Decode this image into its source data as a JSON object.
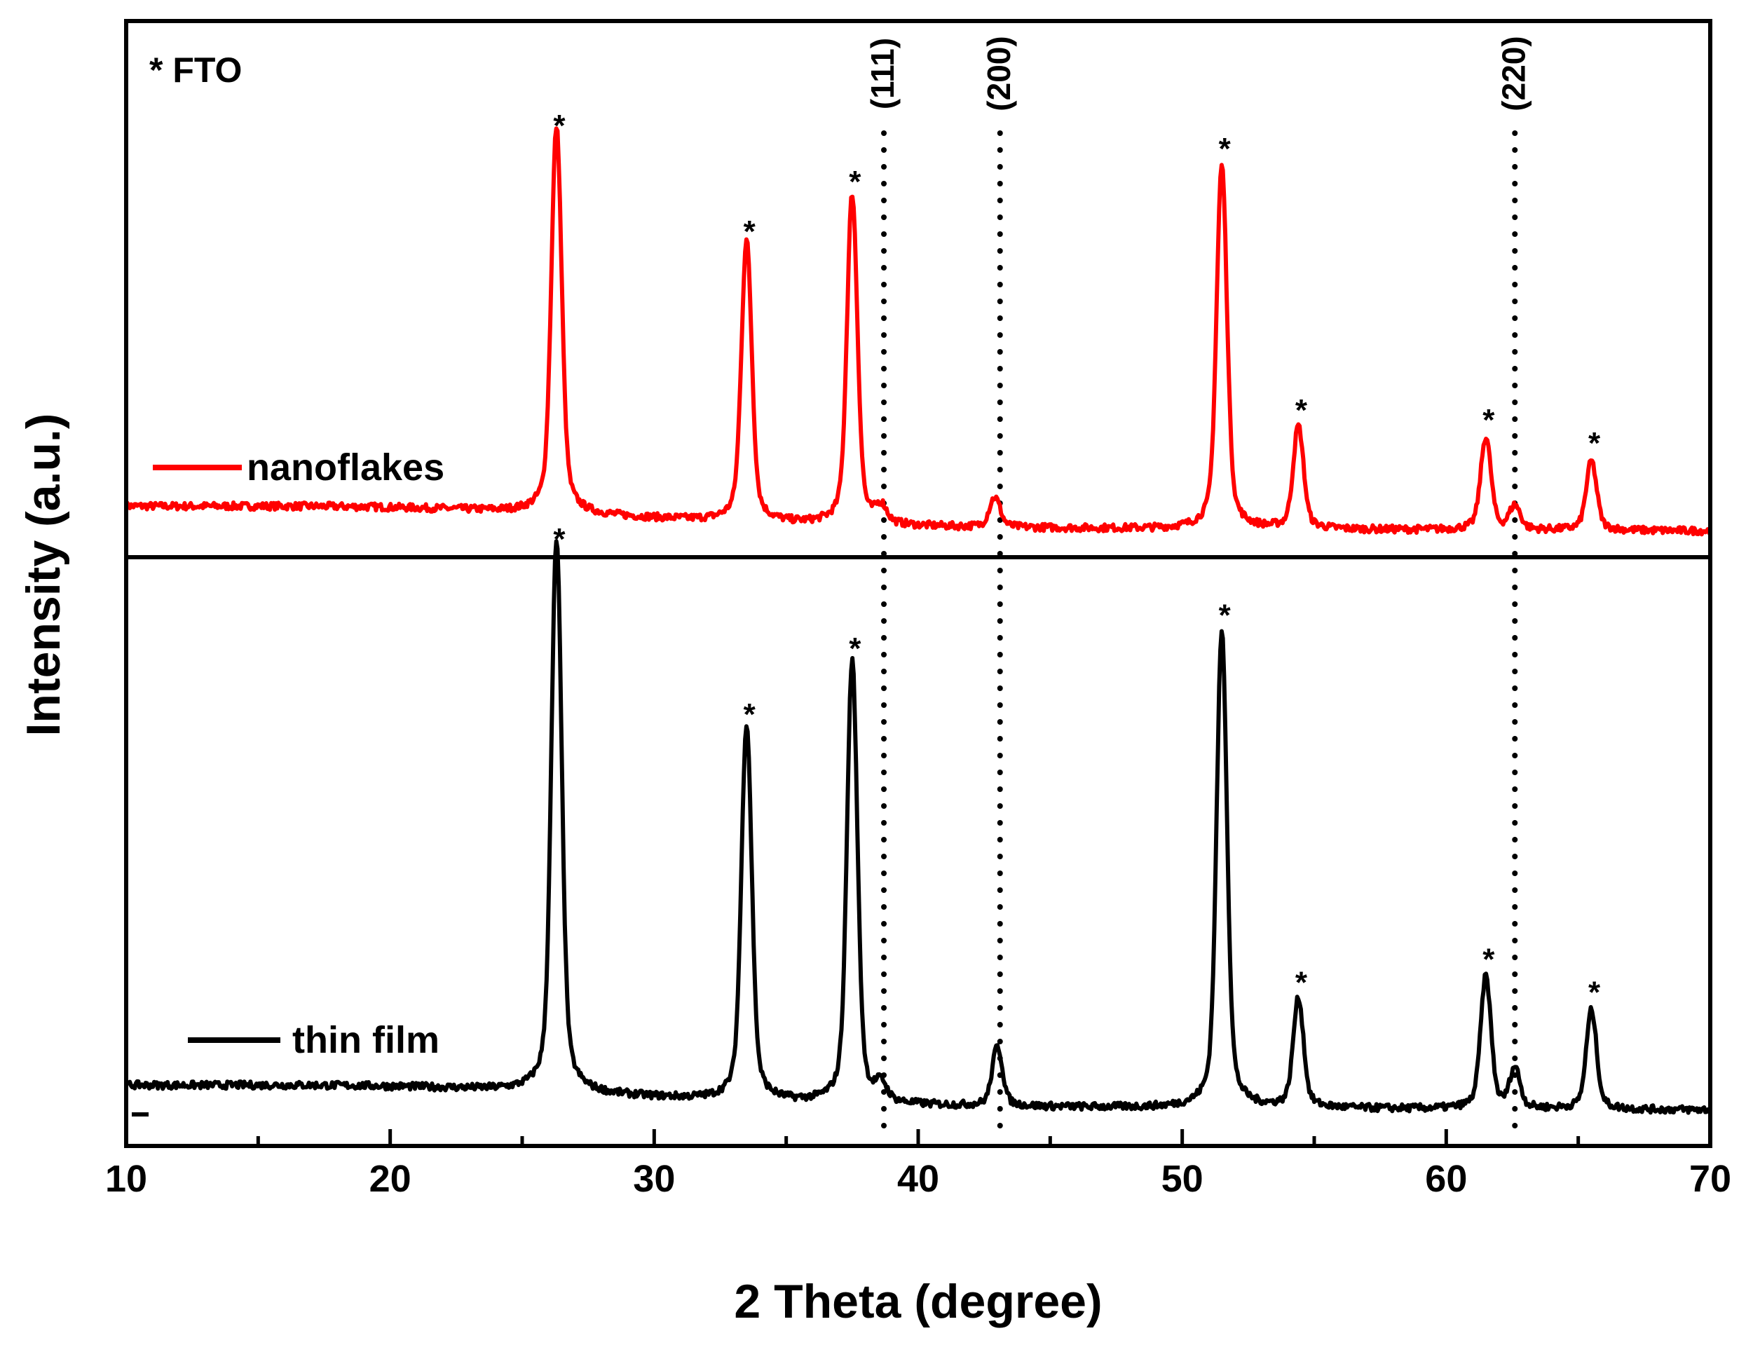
{
  "chart_data": {
    "type": "line",
    "title": "",
    "xlabel": "2 Theta (degree)",
    "ylabel": "Intensity (a.u.)",
    "xlim": [
      10,
      70
    ],
    "xticks": [
      10,
      20,
      30,
      40,
      50,
      60,
      70
    ],
    "xtick_labels": [
      "10",
      "20",
      "30",
      "40",
      "50",
      "60",
      "70"
    ],
    "ylim": [
      0,
      1.7
    ],
    "y_ticks_shown": false,
    "grid": false,
    "legend_note": "* FTO",
    "reference_lines": [
      {
        "x": 38.7,
        "label": "(111)"
      },
      {
        "x": 43.1,
        "label": "(200)"
      },
      {
        "x": 62.6,
        "label": "(220)"
      }
    ],
    "series": [
      {
        "name": "nanoflakes",
        "color": "#ff0000",
        "baseline": 0.935,
        "peaks": [
          {
            "x": 26.3,
            "height": 0.585,
            "marked": true
          },
          {
            "x": 33.5,
            "height": 0.425,
            "marked": true
          },
          {
            "x": 37.5,
            "height": 0.5,
            "marked": true
          },
          {
            "x": 38.6,
            "height": 0.025,
            "marked": false
          },
          {
            "x": 42.9,
            "height": 0.045,
            "marked": false
          },
          {
            "x": 51.5,
            "height": 0.55,
            "marked": true
          },
          {
            "x": 54.4,
            "height": 0.155,
            "marked": true
          },
          {
            "x": 61.5,
            "height": 0.14,
            "marked": true
          },
          {
            "x": 62.6,
            "height": 0.035,
            "marked": false
          },
          {
            "x": 65.5,
            "height": 0.105,
            "marked": true
          }
        ]
      },
      {
        "name": "thin film",
        "color": "#000000",
        "baseline": 0.06,
        "peaks": [
          {
            "x": 26.3,
            "height": 0.835,
            "marked": true
          },
          {
            "x": 33.5,
            "height": 0.57,
            "marked": true
          },
          {
            "x": 37.5,
            "height": 0.67,
            "marked": true
          },
          {
            "x": 38.6,
            "height": 0.025,
            "marked": false
          },
          {
            "x": 43.0,
            "height": 0.09,
            "marked": false
          },
          {
            "x": 51.5,
            "height": 0.72,
            "marked": true
          },
          {
            "x": 54.4,
            "height": 0.165,
            "marked": true
          },
          {
            "x": 61.5,
            "height": 0.2,
            "marked": true
          },
          {
            "x": 62.6,
            "height": 0.06,
            "marked": false
          },
          {
            "x": 65.5,
            "height": 0.15,
            "marked": true
          }
        ]
      }
    ]
  }
}
